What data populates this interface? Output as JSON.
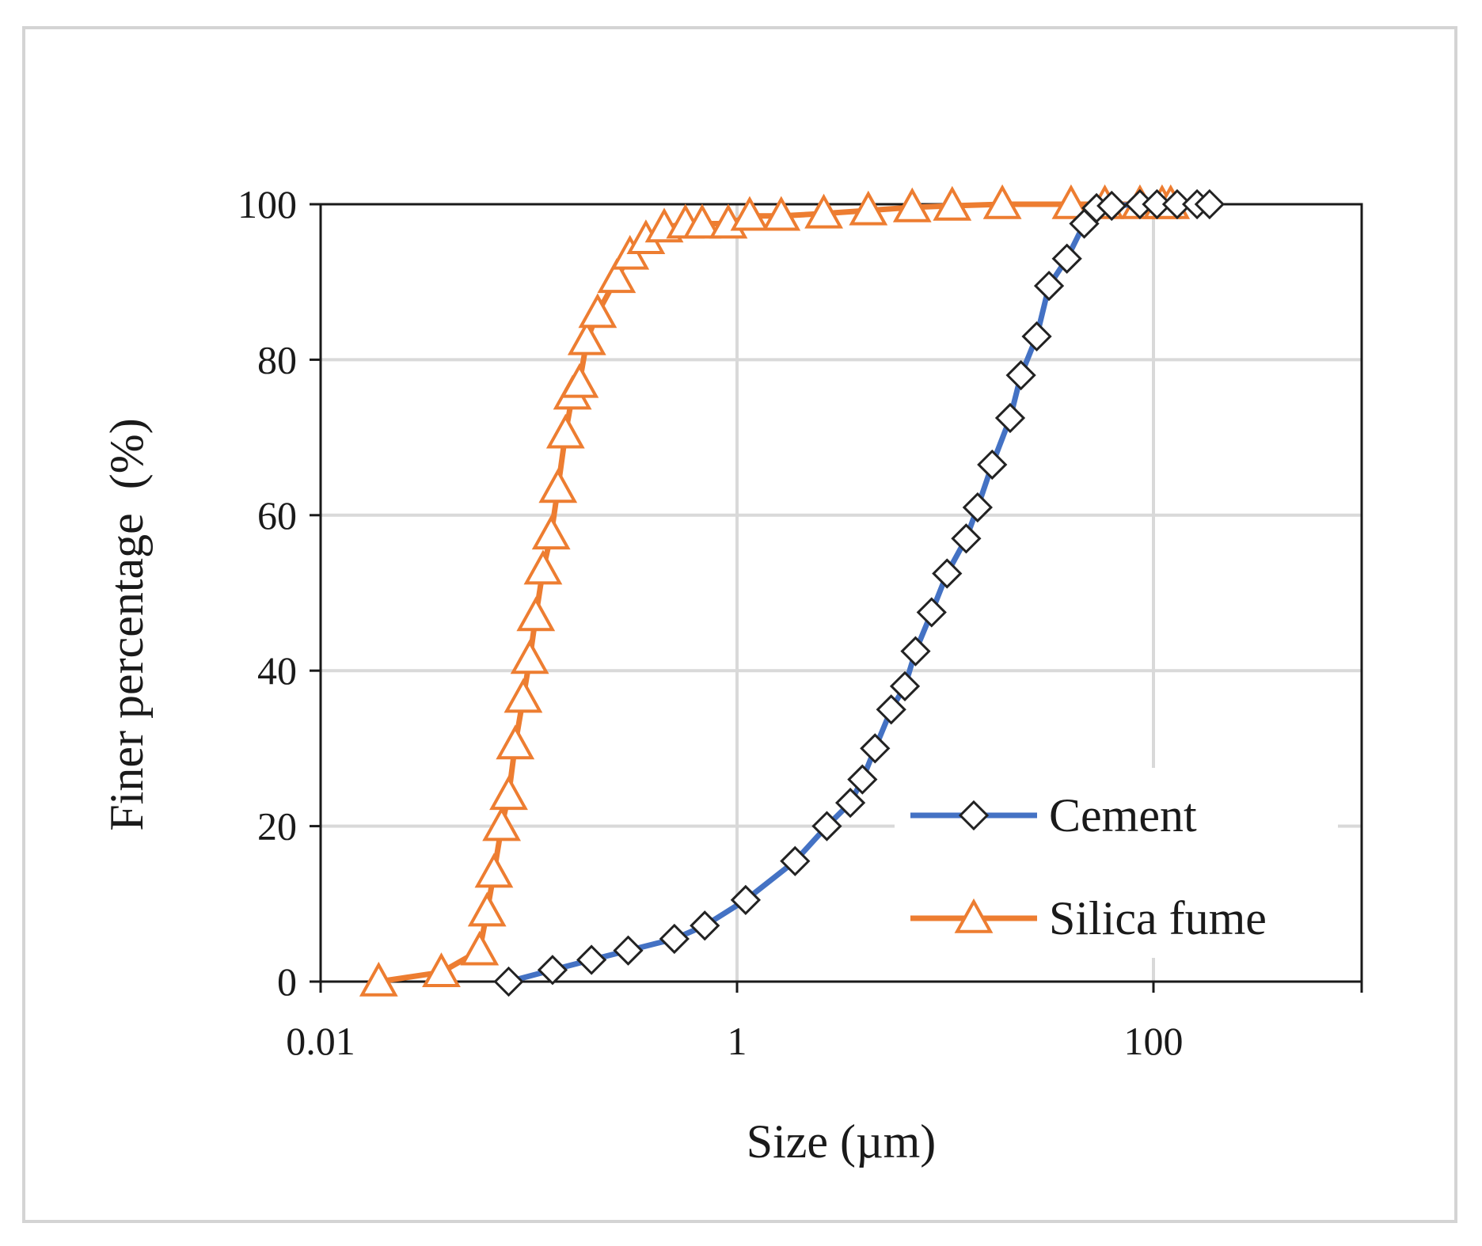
{
  "chart_data": {
    "type": "line",
    "xscale": "log",
    "xlabel": "Size (µm)",
    "ylabel": "Finer percentage  (%)",
    "xlim": [
      0.01,
      1000
    ],
    "ylim": [
      0,
      100
    ],
    "xticks": [
      0.01,
      1,
      100
    ],
    "xtick_labels": [
      "0.01",
      "1",
      "100"
    ],
    "yticks": [
      0,
      20,
      40,
      60,
      80,
      100
    ],
    "ytick_labels": [
      "0",
      "20",
      "40",
      "60",
      "80",
      "100"
    ],
    "grid": true,
    "legend_position": "bottom-right",
    "series": [
      {
        "name": "Cement",
        "color": "#4472C4",
        "marker": "diamond",
        "x": [
          0.08,
          0.13,
          0.2,
          0.3,
          0.5,
          0.7,
          1.1,
          1.9,
          2.7,
          3.5,
          4.0,
          4.6,
          5.5,
          6.4,
          7.2,
          8.6,
          10.2,
          12.6,
          14.3,
          16.8,
          20.5,
          23.1,
          27.5,
          31.5,
          38.4,
          46.5,
          53.3,
          63.0,
          86.1,
          104,
          130,
          162,
          186
        ],
        "values": [
          0,
          1.5,
          2.8,
          4,
          5.5,
          7.2,
          10.5,
          15.5,
          20,
          23,
          26,
          30,
          35,
          38,
          42.5,
          47.5,
          52.5,
          57,
          61,
          66.5,
          72.5,
          78,
          83,
          89.5,
          93,
          97.5,
          99.5,
          99.8,
          100,
          100,
          100,
          100,
          100
        ]
      },
      {
        "name": "Silica fume",
        "color": "#ED7D31",
        "marker": "triangle",
        "x": [
          0.019,
          0.038,
          0.058,
          0.063,
          0.068,
          0.074,
          0.08,
          0.086,
          0.094,
          0.101,
          0.108,
          0.117,
          0.128,
          0.138,
          0.15,
          0.162,
          0.175,
          0.19,
          0.214,
          0.264,
          0.306,
          0.365,
          0.447,
          0.565,
          0.68,
          0.908,
          1.15,
          1.63,
          2.61,
          4.27,
          6.94,
          10.8,
          18.8,
          40.2,
          58.4,
          86.1,
          110,
          121
        ],
        "values": [
          0,
          1.2,
          4,
          9,
          14,
          20,
          24,
          30.5,
          36.5,
          41.5,
          47,
          53,
          57.5,
          63.5,
          70.5,
          75.5,
          77,
          82.5,
          86,
          90.5,
          93.5,
          95.5,
          97,
          97.5,
          97.5,
          97.5,
          98.5,
          98.5,
          98.8,
          99.2,
          99.6,
          99.8,
          100,
          100,
          100,
          100,
          100,
          100
        ]
      }
    ]
  }
}
